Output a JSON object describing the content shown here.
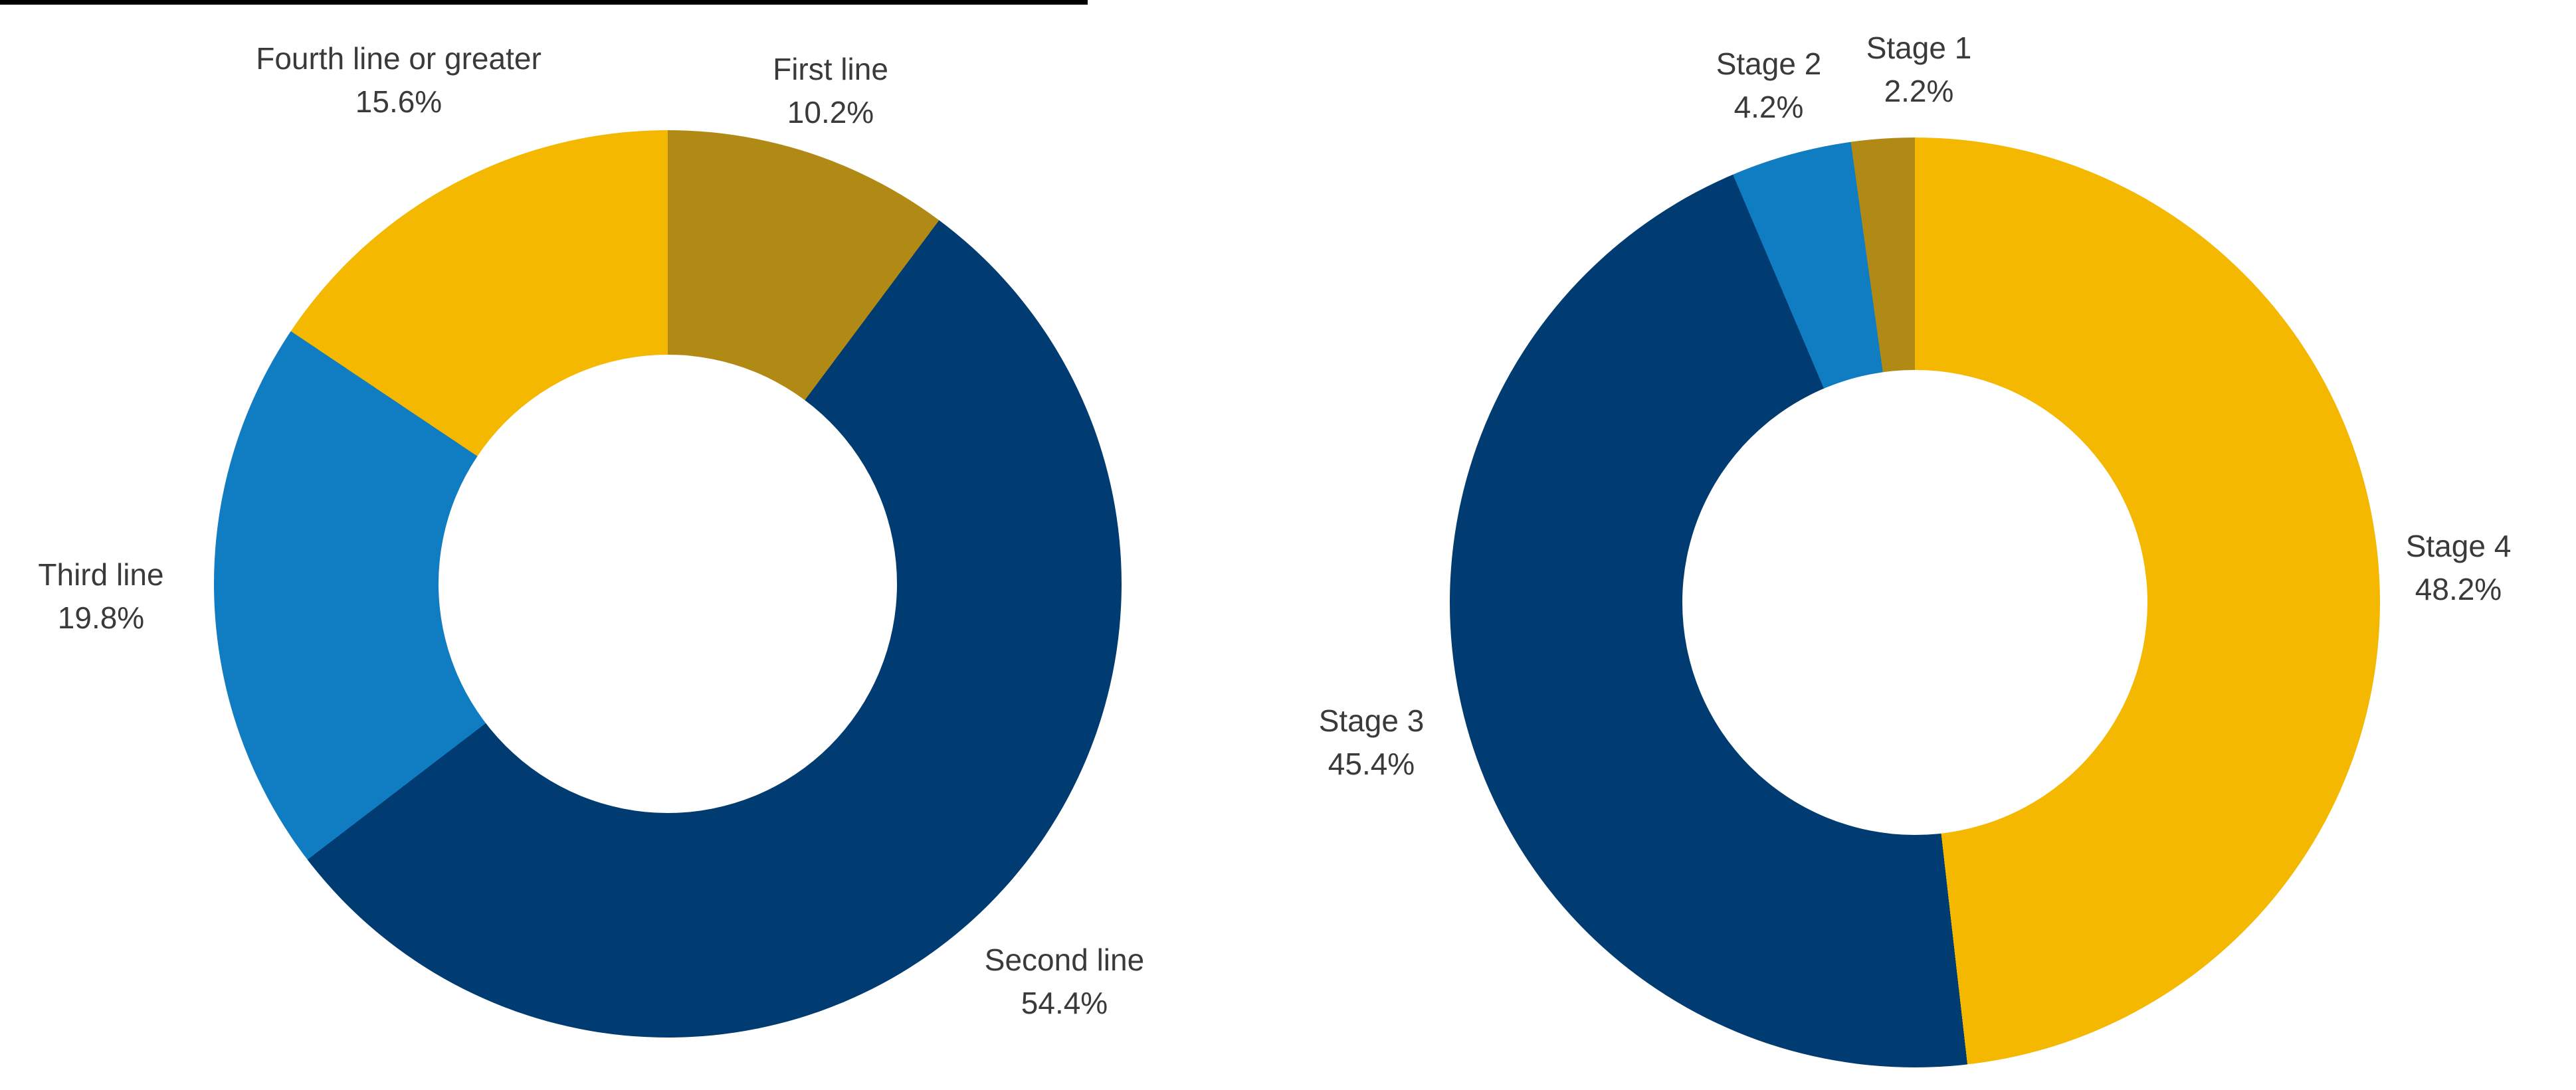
{
  "page": {
    "background": "#ffffff"
  },
  "colors": {
    "olive": "#B18A16",
    "navy": "#003C71",
    "light_blue": "#107DC2",
    "gold": "#F4B800",
    "label_text": "#3A3A3A",
    "top_rule": "#000000"
  },
  "chart_data": [
    {
      "type": "pie",
      "subtype": "donut",
      "title": "",
      "legend": "none",
      "labels_position": "outside",
      "start_angle_deg": 0,
      "direction": "clockwise",
      "inner_radius_ratio": 0.51,
      "slices": [
        {
          "label": "First line",
          "value_pct": 10.2,
          "pct_label": "10.2%",
          "color": "#B18A16"
        },
        {
          "label": "Second line",
          "value_pct": 54.4,
          "pct_label": "54.4%",
          "color": "#003C71"
        },
        {
          "label": "Third line",
          "value_pct": 19.8,
          "pct_label": "19.8%",
          "color": "#107DC2"
        },
        {
          "label": "Fourth line or greater",
          "value_pct": 15.6,
          "pct_label": "15.6%",
          "color": "#F4B800"
        }
      ]
    },
    {
      "type": "pie",
      "subtype": "donut",
      "title": "",
      "legend": "none",
      "labels_position": "outside",
      "start_angle_deg": 0,
      "direction": "clockwise",
      "inner_radius_ratio": 0.5,
      "slices": [
        {
          "label": "Stage 4",
          "value_pct": 48.2,
          "pct_label": "48.2%",
          "color": "#F4B800"
        },
        {
          "label": "Stage 3",
          "value_pct": 45.4,
          "pct_label": "45.4%",
          "color": "#003C71"
        },
        {
          "label": "Stage 2",
          "value_pct": 4.2,
          "pct_label": "4.2%",
          "color": "#107DC2"
        },
        {
          "label": "Stage 1",
          "value_pct": 2.2,
          "pct_label": "2.2%",
          "color": "#B18A16"
        }
      ]
    }
  ]
}
